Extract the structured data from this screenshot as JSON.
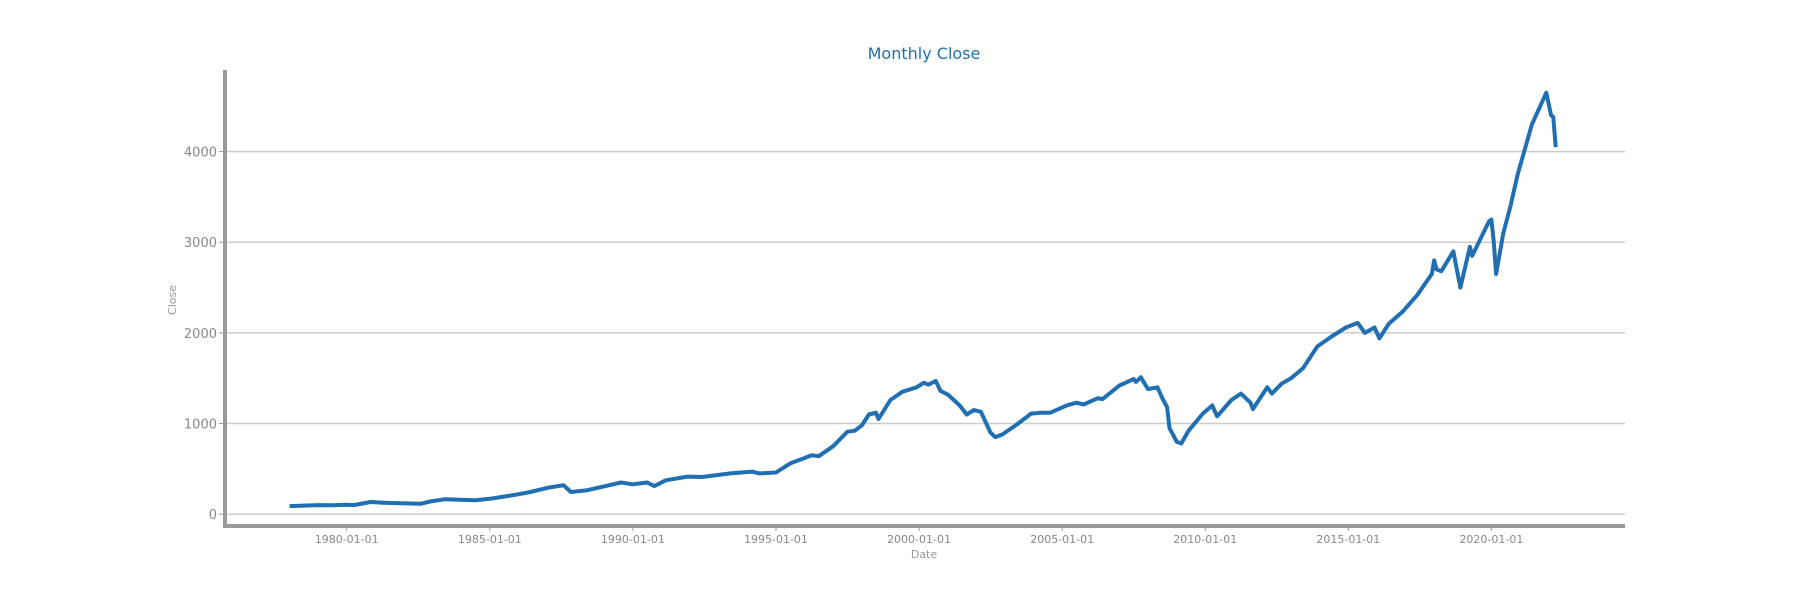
{
  "chart_data": {
    "type": "line",
    "title": "Monthly Close",
    "xlabel": "Date",
    "ylabel": "Close",
    "xlim": [
      "1975-10-01",
      "2024-09-01"
    ],
    "ylim": [
      -130,
      4900
    ],
    "grid": "horizontal",
    "legend": "none",
    "x_ticks": [
      "1980-01-01",
      "1985-01-01",
      "1990-01-01",
      "1995-01-01",
      "2000-01-01",
      "2005-01-01",
      "2010-01-01",
      "2015-01-01",
      "2020-01-01"
    ],
    "y_ticks": [
      0,
      1000,
      2000,
      3000,
      4000
    ],
    "colors": {
      "line": "#1f6fb2",
      "title": "#1f6fb2",
      "grid": "#cccccc",
      "axis": "#999999",
      "text": "#888888"
    },
    "series": [
      {
        "x": [
          "1978-01-01",
          "1978-07-01",
          "1979-01-01",
          "1979-07-01",
          "1980-01-01",
          "1980-04-01",
          "1980-11-01",
          "1981-06-01",
          "1982-08-01",
          "1982-12-01",
          "1983-06-01",
          "1984-07-01",
          "1985-01-01",
          "1985-12-01",
          "1986-06-01",
          "1987-01-01",
          "1987-08-01",
          "1987-11-01",
          "1988-06-01",
          "1989-08-01",
          "1990-01-01",
          "1990-07-01",
          "1990-10-01",
          "1991-03-01",
          "1991-12-01",
          "1992-06-01",
          "1993-06-01",
          "1994-03-01",
          "1994-06-01",
          "1995-01-01",
          "1995-07-01",
          "1996-01-01",
          "1996-04-01",
          "1996-07-01",
          "1997-01-01",
          "1997-07-01",
          "1997-10-01",
          "1998-01-01",
          "1998-04-01",
          "1998-07-01",
          "1998-08-01",
          "1999-01-01",
          "1999-06-01",
          "1999-12-01",
          "2000-03-01",
          "2000-05-01",
          "2000-08-01",
          "2000-10-01",
          "2001-01-01",
          "2001-04-01",
          "2001-06-01",
          "2001-09-01",
          "2001-12-01",
          "2002-03-01",
          "2002-07-01",
          "2002-09-01",
          "2002-12-01",
          "2003-06-01",
          "2003-12-01",
          "2004-04-01",
          "2004-08-01",
          "2005-03-01",
          "2005-07-01",
          "2005-10-01",
          "2006-04-01",
          "2006-06-01",
          "2007-01-01",
          "2007-07-01",
          "2007-08-01",
          "2007-10-01",
          "2008-01-01",
          "2008-05-01",
          "2008-07-01",
          "2008-09-01",
          "2008-10-01",
          "2008-11-01",
          "2009-01-01",
          "2009-03-01",
          "2009-06-01",
          "2009-12-01",
          "2010-04-01",
          "2010-06-01",
          "2010-12-01",
          "2011-04-01",
          "2011-08-01",
          "2011-09-01",
          "2012-03-01",
          "2012-05-01",
          "2012-09-01",
          "2013-01-01",
          "2013-06-01",
          "2013-12-01",
          "2014-06-01",
          "2014-12-01",
          "2015-05-01",
          "2015-08-01",
          "2015-12-01",
          "2016-02-01",
          "2016-06-01",
          "2016-12-01",
          "2017-06-01",
          "2017-12-01",
          "2018-01-01",
          "2018-02-01",
          "2018-04-01",
          "2018-09-01",
          "2018-12-01",
          "2019-04-01",
          "2019-05-01",
          "2019-12-01",
          "2020-01-01",
          "2020-02-01",
          "2020-03-01",
          "2020-06-01",
          "2020-09-01",
          "2020-12-01",
          "2021-06-01",
          "2021-12-01",
          "2022-02-01",
          "2022-03-01",
          "2022-04-01"
        ],
        "y": [
          90,
          95,
          100,
          98,
          105,
          100,
          135,
          125,
          115,
          140,
          165,
          155,
          170,
          215,
          245,
          290,
          320,
          245,
          265,
          350,
          330,
          350,
          310,
          375,
          415,
          410,
          450,
          470,
          450,
          460,
          560,
          620,
          650,
          640,
          750,
          910,
          920,
          980,
          1100,
          1120,
          1050,
          1260,
          1350,
          1400,
          1450,
          1430,
          1470,
          1360,
          1320,
          1250,
          1200,
          1100,
          1150,
          1130,
          900,
          850,
          880,
          990,
          1110,
          1120,
          1120,
          1200,
          1230,
          1210,
          1280,
          1270,
          1420,
          1490,
          1460,
          1510,
          1380,
          1400,
          1280,
          1180,
          950,
          900,
          800,
          780,
          920,
          1110,
          1200,
          1080,
          1260,
          1330,
          1230,
          1160,
          1400,
          1330,
          1440,
          1500,
          1610,
          1850,
          1960,
          2060,
          2110,
          2000,
          2060,
          1940,
          2100,
          2240,
          2420,
          2650,
          2800,
          2700,
          2680,
          2900,
          2500,
          2950,
          2850,
          3230,
          3250,
          3000,
          2650,
          3100,
          3400,
          3750,
          4300,
          4650,
          4400,
          4380,
          4050
        ]
      }
    ]
  }
}
